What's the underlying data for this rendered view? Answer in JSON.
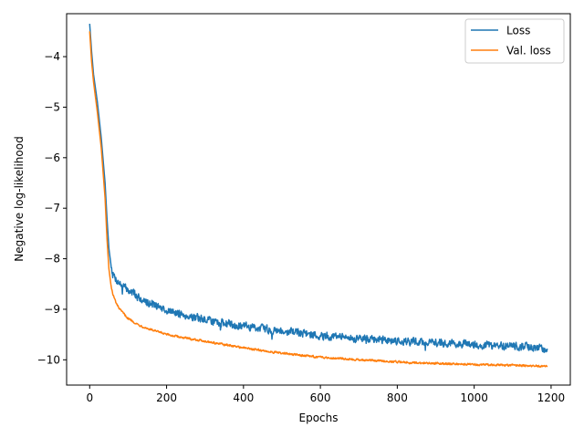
{
  "chart_data": {
    "type": "line",
    "title": "",
    "xlabel": "Epochs",
    "ylabel": "Negative log-likelihood",
    "xlim": [
      -60,
      1250
    ],
    "ylim": [
      -10.5,
      -3.15
    ],
    "xticks": [
      0,
      200,
      400,
      600,
      800,
      1000,
      1200
    ],
    "xtick_labels": [
      "0",
      "200",
      "400",
      "600",
      "800",
      "1000",
      "1200"
    ],
    "yticks": [
      -10,
      -9,
      -8,
      -7,
      -6,
      -5,
      -4
    ],
    "ytick_labels": [
      "−10",
      "−9",
      "−8",
      "−7",
      "−6",
      "−5",
      "−4"
    ],
    "grid": false,
    "legend_position": "top-right",
    "series": [
      {
        "name": "Loss",
        "color": "#1f77b4",
        "x": [
          0,
          5,
          10,
          20,
          30,
          40,
          45,
          50,
          55,
          60,
          70,
          80,
          100,
          125,
          150,
          200,
          250,
          300,
          350,
          400,
          450,
          500,
          550,
          600,
          650,
          700,
          750,
          800,
          850,
          900,
          950,
          1000,
          1050,
          1100,
          1150,
          1190
        ],
        "y": [
          -3.35,
          -3.9,
          -4.35,
          -4.9,
          -5.6,
          -6.5,
          -7.2,
          -7.8,
          -8.1,
          -8.3,
          -8.42,
          -8.5,
          -8.62,
          -8.75,
          -8.85,
          -9.02,
          -9.12,
          -9.2,
          -9.27,
          -9.33,
          -9.38,
          -9.42,
          -9.46,
          -9.52,
          -9.55,
          -9.58,
          -9.6,
          -9.62,
          -9.64,
          -9.66,
          -9.68,
          -9.7,
          -9.72,
          -9.73,
          -9.75,
          -9.78
        ],
        "noise": 0.07
      },
      {
        "name": "Val. loss",
        "color": "#ff7f0e",
        "x": [
          0,
          5,
          10,
          20,
          30,
          40,
          45,
          50,
          55,
          60,
          70,
          80,
          100,
          125,
          150,
          200,
          250,
          300,
          350,
          400,
          450,
          500,
          550,
          600,
          650,
          700,
          750,
          800,
          850,
          900,
          950,
          1000,
          1050,
          1100,
          1150,
          1190
        ],
        "y": [
          -3.5,
          -4.1,
          -4.5,
          -5.1,
          -5.8,
          -6.8,
          -7.6,
          -8.2,
          -8.5,
          -8.7,
          -8.9,
          -9.02,
          -9.18,
          -9.3,
          -9.38,
          -9.5,
          -9.57,
          -9.63,
          -9.7,
          -9.76,
          -9.82,
          -9.87,
          -9.91,
          -9.95,
          -9.97,
          -10.0,
          -10.02,
          -10.04,
          -10.06,
          -10.07,
          -10.08,
          -10.09,
          -10.1,
          -10.11,
          -10.12,
          -10.13
        ],
        "noise": 0.018
      }
    ]
  }
}
